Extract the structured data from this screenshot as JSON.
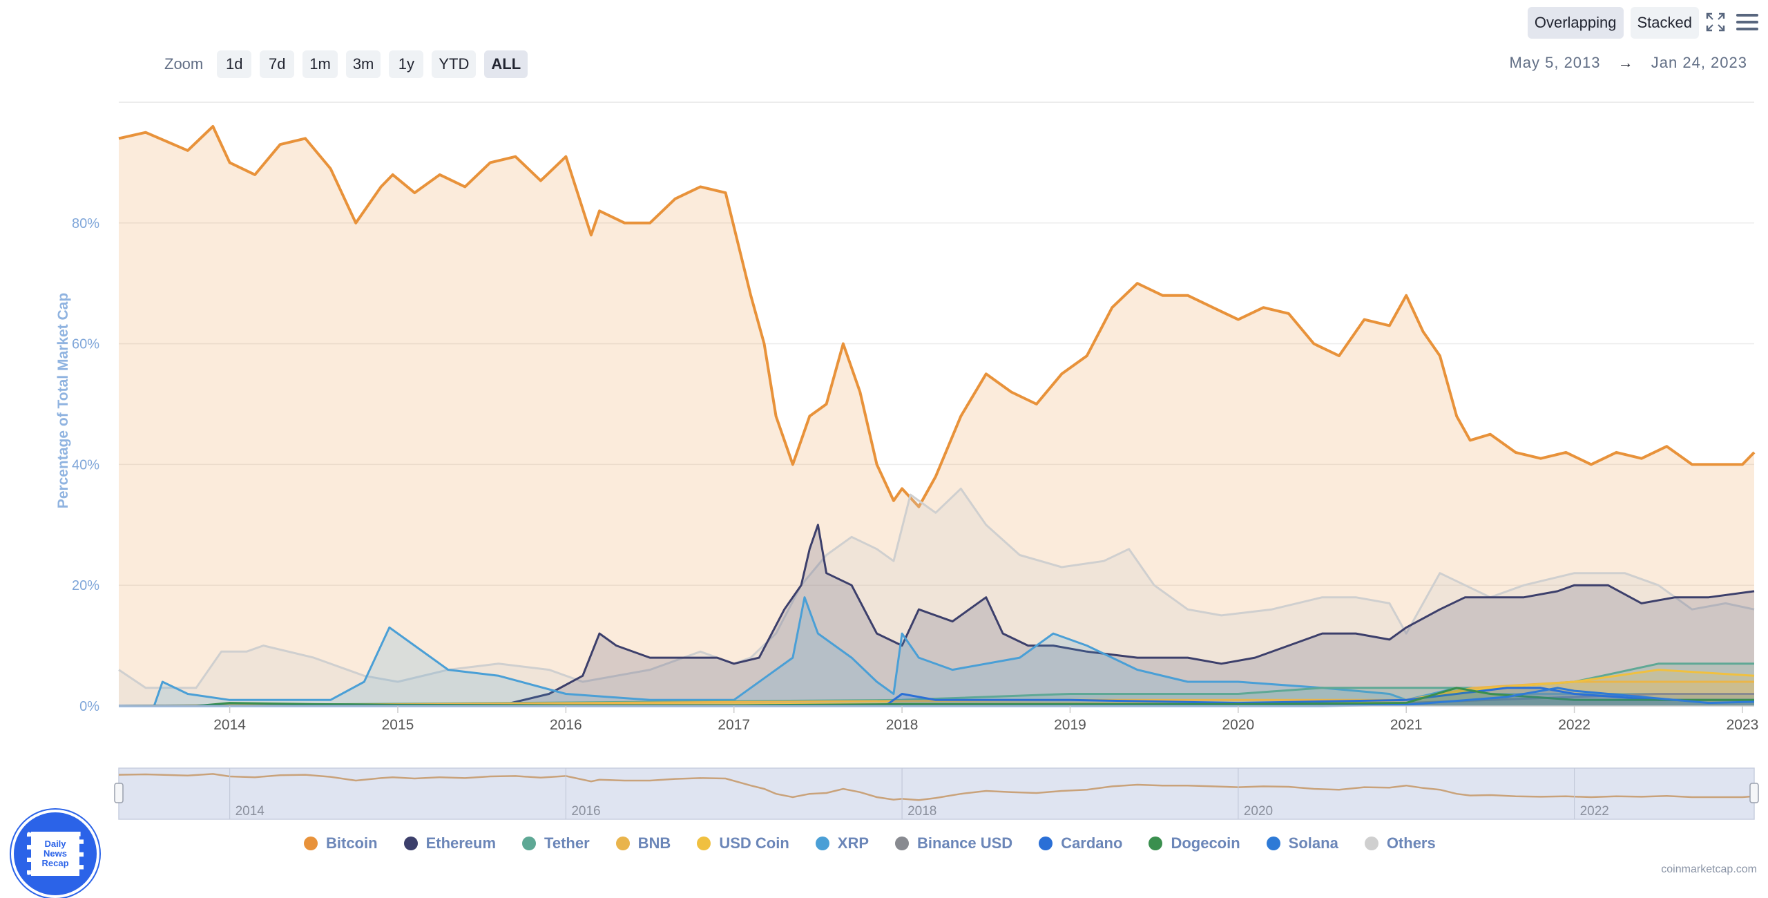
{
  "zoom": {
    "label": "Zoom",
    "options": [
      "1d",
      "7d",
      "1m",
      "3m",
      "1y",
      "YTD",
      "ALL"
    ],
    "active": "ALL"
  },
  "date_range": {
    "from": "May 5, 2013",
    "arrow": "→",
    "to": "Jan 24, 2023"
  },
  "view": {
    "overlapping": "Overlapping",
    "stacked": "Stacked",
    "active": "Overlapping"
  },
  "icons": {
    "fullscreen": "fullscreen-icon",
    "menu": "hamburger-menu-icon"
  },
  "credit": "coinmarketcap.com",
  "logo": {
    "line1": "Daily",
    "line2": "News",
    "line3": "Recap"
  },
  "colors": {
    "Bitcoin": "#e8923a",
    "Ethereum": "#3c3f6b",
    "Tether": "#5ea895",
    "BNB": "#e9b44c",
    "USD Coin": "#f0c040",
    "XRP": "#4a9fd6",
    "Binance USD": "#888a90",
    "Cardano": "#2a6fd6",
    "Dogecoin": "#3a8f4e",
    "Solana": "#2e7ad6",
    "Others": "#cfcfcf"
  },
  "chart_data": {
    "type": "area",
    "title": "",
    "xlabel": "",
    "ylabel": "Percentage of Total Market Cap",
    "xlim": [
      2013.34,
      2023.07
    ],
    "ylim": [
      0,
      100
    ],
    "x_ticks": [
      "2014",
      "2015",
      "2016",
      "2017",
      "2018",
      "2019",
      "2020",
      "2021",
      "2022",
      "2023"
    ],
    "y_ticks": [
      "0%",
      "20%",
      "40%",
      "60%",
      "80%"
    ],
    "grid": true,
    "legend_position": "bottom",
    "navigator_ticks": [
      "2014",
      "2016",
      "2018",
      "2020",
      "2022"
    ],
    "series": [
      {
        "name": "Bitcoin",
        "x": [
          2013.34,
          2013.5,
          2013.75,
          2013.9,
          2014.0,
          2014.15,
          2014.3,
          2014.45,
          2014.6,
          2014.75,
          2014.9,
          2014.97,
          2015.1,
          2015.25,
          2015.4,
          2015.55,
          2015.7,
          2015.85,
          2016.0,
          2016.15,
          2016.2,
          2016.35,
          2016.5,
          2016.65,
          2016.8,
          2016.95,
          2017.1,
          2017.18,
          2017.25,
          2017.35,
          2017.45,
          2017.55,
          2017.65,
          2017.75,
          2017.85,
          2017.95,
          2018.0,
          2018.1,
          2018.2,
          2018.35,
          2018.5,
          2018.65,
          2018.8,
          2018.95,
          2019.1,
          2019.25,
          2019.4,
          2019.55,
          2019.7,
          2019.85,
          2020.0,
          2020.15,
          2020.3,
          2020.45,
          2020.6,
          2020.75,
          2020.9,
          2021.0,
          2021.1,
          2021.2,
          2021.3,
          2021.38,
          2021.5,
          2021.65,
          2021.8,
          2021.95,
          2022.1,
          2022.25,
          2022.4,
          2022.55,
          2022.7,
          2022.85,
          2023.0,
          2023.07
        ],
        "values": [
          94,
          95,
          92,
          96,
          90,
          88,
          93,
          94,
          89,
          80,
          86,
          88,
          85,
          88,
          86,
          90,
          91,
          87,
          91,
          78,
          82,
          80,
          80,
          84,
          86,
          85,
          68,
          60,
          48,
          40,
          48,
          50,
          60,
          52,
          40,
          34,
          36,
          33,
          38,
          48,
          55,
          52,
          50,
          55,
          58,
          66,
          70,
          68,
          68,
          66,
          64,
          66,
          65,
          60,
          58,
          64,
          63,
          68,
          62,
          58,
          48,
          44,
          45,
          42,
          41,
          42,
          40,
          42,
          41,
          43,
          40,
          40,
          40,
          42
        ]
      },
      {
        "name": "Ethereum",
        "x": [
          2013.34,
          2015.6,
          2015.9,
          2016.1,
          2016.2,
          2016.3,
          2016.5,
          2016.7,
          2016.9,
          2017.0,
          2017.15,
          2017.3,
          2017.4,
          2017.45,
          2017.5,
          2017.55,
          2017.7,
          2017.85,
          2018.0,
          2018.1,
          2018.3,
          2018.5,
          2018.6,
          2018.75,
          2018.9,
          2019.1,
          2019.4,
          2019.7,
          2019.9,
          2020.1,
          2020.3,
          2020.5,
          2020.7,
          2020.9,
          2021.0,
          2021.2,
          2021.35,
          2021.5,
          2021.7,
          2021.9,
          2022.0,
          2022.2,
          2022.4,
          2022.6,
          2022.8,
          2023.07
        ],
        "values": [
          0,
          0,
          2,
          5,
          12,
          10,
          8,
          8,
          8,
          7,
          8,
          16,
          20,
          26,
          30,
          22,
          20,
          12,
          10,
          16,
          14,
          18,
          12,
          10,
          10,
          9,
          8,
          8,
          7,
          8,
          10,
          12,
          12,
          11,
          13,
          16,
          18,
          18,
          18,
          19,
          20,
          20,
          17,
          18,
          18,
          19
        ]
      },
      {
        "name": "Tether",
        "x": [
          2013.34,
          2018.0,
          2019.0,
          2020.0,
          2020.5,
          2021.0,
          2021.5,
          2022.0,
          2022.5,
          2023.07
        ],
        "values": [
          0,
          1,
          2,
          2,
          3,
          3,
          3,
          4,
          7,
          7
        ]
      },
      {
        "name": "BNB",
        "x": [
          2013.34,
          2019.0,
          2020.0,
          2021.0,
          2021.4,
          2022.0,
          2022.5,
          2023.07
        ],
        "values": [
          0,
          1,
          1,
          1,
          3,
          4,
          4,
          4
        ]
      },
      {
        "name": "USD Coin",
        "x": [
          2013.34,
          2020.5,
          2021.0,
          2021.5,
          2022.0,
          2022.5,
          2023.07
        ],
        "values": [
          0,
          0.5,
          1,
          3,
          4,
          6,
          5
        ]
      },
      {
        "name": "XRP",
        "x": [
          2013.34,
          2013.55,
          2013.6,
          2013.75,
          2014.0,
          2014.6,
          2014.8,
          2014.95,
          2015.1,
          2015.3,
          2015.6,
          2016.0,
          2016.5,
          2017.0,
          2017.2,
          2017.35,
          2017.42,
          2017.5,
          2017.7,
          2017.85,
          2017.95,
          2018.0,
          2018.1,
          2018.3,
          2018.7,
          2018.9,
          2019.1,
          2019.4,
          2019.7,
          2020.0,
          2020.5,
          2020.9,
          2021.0,
          2021.3,
          2021.5,
          2022.0,
          2022.5,
          2023.07
        ],
        "values": [
          0,
          0,
          4,
          2,
          1,
          1,
          4,
          13,
          10,
          6,
          5,
          2,
          1,
          1,
          5,
          8,
          18,
          12,
          8,
          4,
          2,
          12,
          8,
          6,
          8,
          12,
          10,
          6,
          4,
          4,
          3,
          2,
          1,
          3,
          2,
          2,
          2,
          2
        ]
      },
      {
        "name": "Binance USD",
        "x": [
          2013.34,
          2019.7,
          2020.5,
          2021.0,
          2021.5,
          2022.0,
          2022.5,
          2023.07
        ],
        "values": [
          0,
          0.2,
          0.3,
          0.5,
          1,
          1.5,
          2,
          2
        ]
      },
      {
        "name": "Cardano",
        "x": [
          2013.34,
          2017.9,
          2018.0,
          2018.2,
          2018.6,
          2019.0,
          2020.0,
          2021.0,
          2021.3,
          2021.6,
          2021.8,
          2022.0,
          2022.5,
          2023.07
        ],
        "values": [
          0,
          0,
          2,
          1,
          1,
          1,
          0.5,
          1,
          2,
          3,
          3,
          2,
          1,
          1
        ]
      },
      {
        "name": "Dogecoin",
        "x": [
          2013.34,
          2013.8,
          2014.0,
          2014.5,
          2015.0,
          2016.0,
          2017.0,
          2018.0,
          2019.0,
          2020.0,
          2021.0,
          2021.3,
          2021.5,
          2022.0,
          2023.07
        ],
        "values": [
          0,
          0,
          0.5,
          0.3,
          0.2,
          0.1,
          0.1,
          0.3,
          0.3,
          0.3,
          0.5,
          3,
          2,
          1,
          1
        ]
      },
      {
        "name": "Solana",
        "x": [
          2013.34,
          2020.5,
          2021.0,
          2021.6,
          2021.9,
          2022.0,
          2022.4,
          2022.8,
          2023.07
        ],
        "values": [
          0,
          0,
          0.2,
          1.5,
          3,
          2.5,
          1.5,
          0.5,
          0.7
        ]
      },
      {
        "name": "Others",
        "x": [
          2013.34,
          2013.5,
          2013.8,
          2013.95,
          2014.1,
          2014.2,
          2014.5,
          2014.8,
          2015.0,
          2015.3,
          2015.6,
          2015.9,
          2016.1,
          2016.5,
          2016.8,
          2017.0,
          2017.1,
          2017.25,
          2017.4,
          2017.55,
          2017.7,
          2017.85,
          2017.95,
          2018.05,
          2018.2,
          2018.35,
          2018.5,
          2018.7,
          2018.95,
          2019.2,
          2019.35,
          2019.5,
          2019.7,
          2019.9,
          2020.2,
          2020.5,
          2020.7,
          2020.9,
          2021.0,
          2021.2,
          2021.35,
          2021.5,
          2021.7,
          2022.0,
          2022.3,
          2022.5,
          2022.7,
          2022.9,
          2023.07
        ],
        "values": [
          6,
          3,
          3,
          9,
          9,
          10,
          8,
          5,
          4,
          6,
          7,
          6,
          4,
          6,
          9,
          7,
          8,
          12,
          20,
          25,
          28,
          26,
          24,
          35,
          32,
          36,
          30,
          25,
          23,
          24,
          26,
          20,
          16,
          15,
          16,
          18,
          18,
          17,
          12,
          22,
          20,
          18,
          20,
          22,
          22,
          20,
          16,
          17,
          16
        ]
      }
    ]
  }
}
